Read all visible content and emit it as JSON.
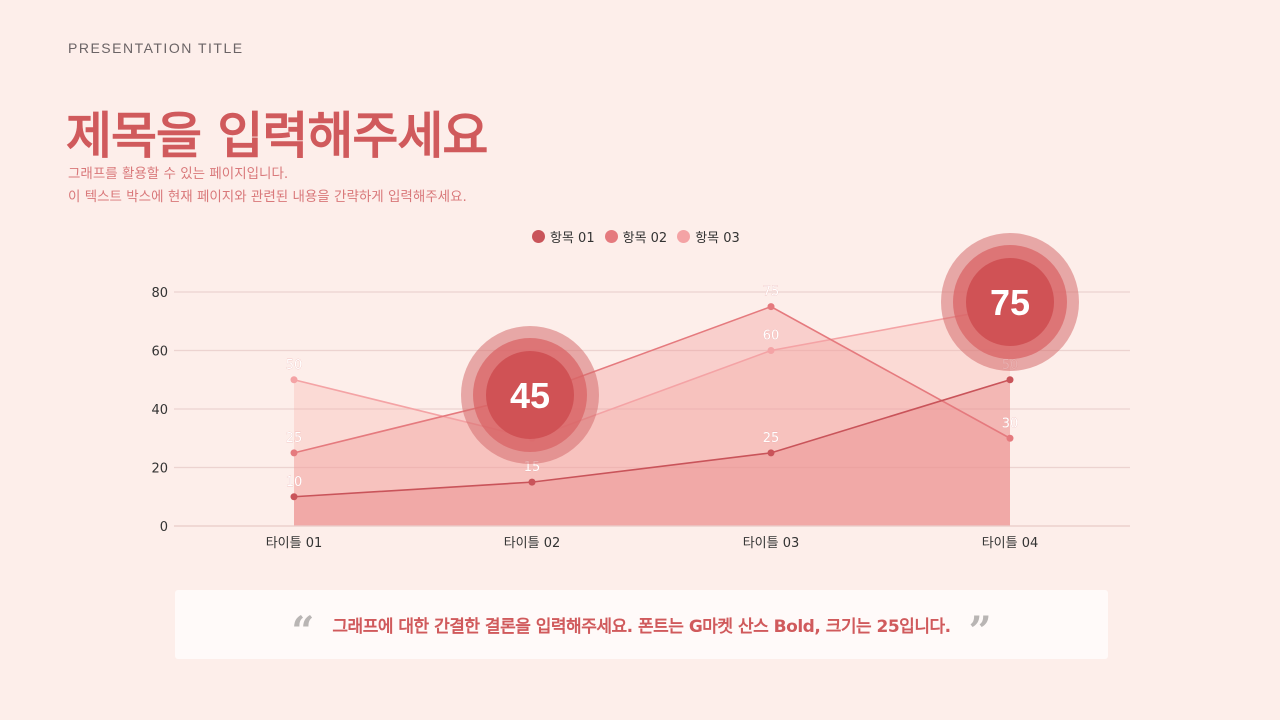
{
  "header": {
    "presentation_title": "PRESENTATION TITLE",
    "title": "제목을 입력해주세요",
    "description_line1": "그래프를 활용할 수 있는 페이지입니다.",
    "description_line2": "이 텍스트 박스에 현재 페이지와 관련된 내용을 간략하게 입력해주세요."
  },
  "legend": [
    {
      "label": "항목 01",
      "color": "#c9545a"
    },
    {
      "label": "항목 02",
      "color": "#e57a7e"
    },
    {
      "label": "항목 03",
      "color": "#f4a3a5"
    }
  ],
  "highlights": [
    {
      "value": "45",
      "category": "타이틀 02",
      "series": "항목 02"
    },
    {
      "value": "75",
      "category": "타이틀 04",
      "series": "항목 03"
    }
  ],
  "conclusion": {
    "open_quote": "“",
    "text": "그래프에 대한 간결한 결론을 입력해주세요. 폰트는 G마켓 산스 Bold, 크기는 25입니다.",
    "close_quote": "”"
  },
  "chart_data": {
    "type": "area",
    "title": "",
    "xlabel": "",
    "ylabel": "",
    "categories": [
      "타이틀 01",
      "타이틀 02",
      "타이틀 03",
      "타이틀 04"
    ],
    "series": [
      {
        "name": "항목 01",
        "values": [
          10,
          15,
          25,
          50
        ],
        "color": "#c9545a"
      },
      {
        "name": "항목 02",
        "values": [
          25,
          45,
          75,
          30
        ],
        "color": "#e57a7e"
      },
      {
        "name": "항목 03",
        "values": [
          50,
          30,
          60,
          75
        ],
        "color": "#f4a3a5"
      }
    ],
    "yticks": [
      0,
      20,
      40,
      60,
      80
    ],
    "ylim": [
      0,
      80
    ],
    "grid": true,
    "legend_position": "top",
    "data_labels": true
  }
}
